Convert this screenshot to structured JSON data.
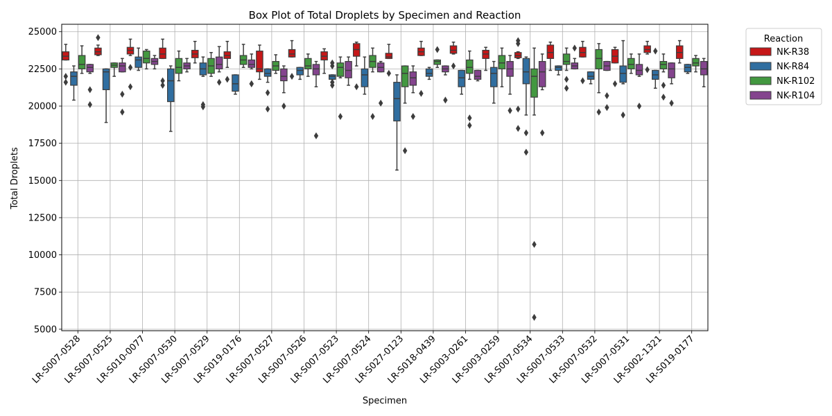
{
  "chart_data": {
    "type": "box",
    "title": "Box Plot of Total Droplets by Specimen and Reaction",
    "xlabel": "Specimen",
    "ylabel": "Total Droplets",
    "ylim": [
      4900,
      25500
    ],
    "yticks": [
      5000,
      7500,
      10000,
      12500,
      15000,
      17500,
      20000,
      22500,
      25000
    ],
    "grid": true,
    "legend": {
      "title": "Reaction",
      "placement": "outside-top-right"
    },
    "categories": [
      "LR-S007-0528",
      "LR-S007-0525",
      "LR-S010-0077",
      "LR-S007-0530",
      "LR-S007-0529",
      "LR-S019-0176",
      "LR-S007-0527",
      "LR-S007-0526",
      "LR-S007-0523",
      "LR-S007-0524",
      "LR-S027-0123",
      "LR-S018-0439",
      "LR-S003-0261",
      "LR-S003-0259",
      "LR-S007-0534",
      "LR-S007-0533",
      "LR-S007-0532",
      "LR-S007-0531",
      "LR-S002-1321",
      "LR-S019-0177"
    ],
    "series": [
      {
        "name": "NK-R38",
        "color": "#e41a1c",
        "boxes": [
          {
            "whislo": 23100,
            "q1": 23100,
            "med": 23350,
            "q3": 23650,
            "whishi": 24150,
            "fliers": [
              22000,
              21600
            ]
          },
          {
            "whislo": 23400,
            "q1": 23450,
            "med": 23650,
            "q3": 23900,
            "whishi": 24100,
            "fliers": [
              24600
            ]
          },
          {
            "whislo": 23400,
            "q1": 23500,
            "med": 23750,
            "q3": 23950,
            "whishi": 24500,
            "fliers": [
              22600,
              21300
            ]
          },
          {
            "whislo": 23200,
            "q1": 23200,
            "med": 23500,
            "q3": 23900,
            "whishi": 24500,
            "fliers": [
              21700,
              21400
            ]
          },
          {
            "whislo": 22900,
            "q1": 23250,
            "med": 23500,
            "q3": 23750,
            "whishi": 24350,
            "fliers": []
          },
          {
            "whislo": 22600,
            "q1": 23200,
            "med": 23400,
            "q3": 23650,
            "whishi": 24350,
            "fliers": [
              21800
            ]
          },
          {
            "whislo": 21800,
            "q1": 22300,
            "med": 22500,
            "q3": 23700,
            "whishi": 24100,
            "fliers": []
          },
          {
            "whislo": 23300,
            "q1": 23300,
            "med": 23500,
            "q3": 23800,
            "whishi": 24400,
            "fliers": [
              22000
            ]
          },
          {
            "whislo": 22200,
            "q1": 23100,
            "med": 23350,
            "q3": 23650,
            "whishi": 23850,
            "fliers": []
          },
          {
            "whislo": 22700,
            "q1": 23350,
            "med": 23800,
            "q3": 24200,
            "whishi": 24300,
            "fliers": [
              21300
            ]
          },
          {
            "whislo": 23200,
            "q1": 23200,
            "med": 23300,
            "q3": 23550,
            "whishi": 24150,
            "fliers": [
              22200
            ]
          },
          {
            "whislo": 23400,
            "q1": 23400,
            "med": 23650,
            "q3": 23900,
            "whishi": 24350,
            "fliers": [
              20850
            ]
          },
          {
            "whislo": 23500,
            "q1": 23550,
            "med": 23750,
            "q3": 24050,
            "whishi": 24300,
            "fliers": [
              22700
            ]
          },
          {
            "whislo": 22400,
            "q1": 23200,
            "med": 23500,
            "q3": 23750,
            "whishi": 23950,
            "fliers": []
          },
          {
            "whislo": 23200,
            "q1": 23250,
            "med": 23400,
            "q3": 23600,
            "whishi": 23650,
            "fliers": [
              24400,
              24200,
              19800,
              18500
            ]
          },
          {
            "whislo": 22400,
            "q1": 23200,
            "med": 23600,
            "q3": 24100,
            "whishi": 24300,
            "fliers": []
          },
          {
            "whislo": 23300,
            "q1": 23300,
            "med": 23600,
            "q3": 23950,
            "whishi": 24350,
            "fliers": [
              21700
            ]
          },
          {
            "whislo": 22900,
            "q1": 22900,
            "med": 23350,
            "q3": 23800,
            "whishi": 23950,
            "fliers": [
              21500
            ]
          },
          {
            "whislo": 23500,
            "q1": 23600,
            "med": 23800,
            "q3": 24050,
            "whishi": 24350,
            "fliers": [
              22450
            ]
          },
          {
            "whislo": 22900,
            "q1": 23200,
            "med": 23600,
            "q3": 24050,
            "whishi": 24400,
            "fliers": []
          }
        ]
      },
      {
        "name": "NK-R84",
        "color": "#377eb8",
        "boxes": [
          {
            "whislo": 20400,
            "q1": 21400,
            "med": 22000,
            "q3": 22300,
            "whishi": 22700,
            "fliers": []
          },
          {
            "whislo": 18900,
            "q1": 21100,
            "med": 22300,
            "q3": 22500,
            "whishi": 22500,
            "fliers": []
          },
          {
            "whislo": 22400,
            "q1": 22600,
            "med": 23100,
            "q3": 23300,
            "whishi": 23900,
            "fliers": []
          },
          {
            "whislo": 18300,
            "q1": 20300,
            "med": 21700,
            "q3": 22500,
            "whishi": 22700,
            "fliers": []
          },
          {
            "whislo": 22000,
            "q1": 22100,
            "med": 22500,
            "q3": 22900,
            "whishi": 23300,
            "fliers": [
              20100,
              19950
            ]
          },
          {
            "whislo": 20800,
            "q1": 21000,
            "med": 21500,
            "q3": 22100,
            "whishi": 22100,
            "fliers": []
          },
          {
            "whislo": 21600,
            "q1": 22000,
            "med": 22200,
            "q3": 22500,
            "whishi": 22500,
            "fliers": [
              20900,
              19800
            ]
          },
          {
            "whislo": 21800,
            "q1": 22100,
            "med": 22400,
            "q3": 22600,
            "whishi": 22600,
            "fliers": []
          },
          {
            "whislo": 21800,
            "q1": 21800,
            "med": 22000,
            "q3": 22100,
            "whishi": 22100,
            "fliers": [
              22700,
              22900,
              21600,
              21400
            ]
          },
          {
            "whislo": 20800,
            "q1": 21300,
            "med": 22100,
            "q3": 22500,
            "whishi": 23300,
            "fliers": []
          },
          {
            "whislo": 15700,
            "q1": 19000,
            "med": 20500,
            "q3": 21600,
            "whishi": 22100,
            "fliers": []
          },
          {
            "whislo": 21800,
            "q1": 22000,
            "med": 22200,
            "q3": 22500,
            "whishi": 22600,
            "fliers": []
          },
          {
            "whislo": 20800,
            "q1": 21300,
            "med": 21900,
            "q3": 22400,
            "whishi": 22400,
            "fliers": []
          },
          {
            "whislo": 20200,
            "q1": 21300,
            "med": 22200,
            "q3": 22600,
            "whishi": 23000,
            "fliers": []
          },
          {
            "whislo": 19400,
            "q1": 21500,
            "med": 22300,
            "q3": 23200,
            "whishi": 23300,
            "fliers": [
              16900,
              18200
            ]
          },
          {
            "whislo": 22100,
            "q1": 22400,
            "med": 22600,
            "q3": 22700,
            "whishi": 22700,
            "fliers": []
          },
          {
            "whislo": 21500,
            "q1": 21800,
            "med": 22000,
            "q3": 22300,
            "whishi": 22300,
            "fliers": []
          },
          {
            "whislo": 21500,
            "q1": 21600,
            "med": 22200,
            "q3": 22700,
            "whishi": 24400,
            "fliers": [
              19400
            ]
          },
          {
            "whislo": 21200,
            "q1": 21800,
            "med": 22100,
            "q3": 22400,
            "whishi": 22400,
            "fliers": [
              23700
            ]
          },
          {
            "whislo": 22200,
            "q1": 22300,
            "med": 22600,
            "q3": 22800,
            "whishi": 22800,
            "fliers": []
          }
        ]
      },
      {
        "name": "NK-R102",
        "color": "#4daf4a",
        "boxes": [
          {
            "whislo": 22200,
            "q1": 22500,
            "med": 22800,
            "q3": 23400,
            "whishi": 24050,
            "fliers": []
          },
          {
            "whislo": 22000,
            "q1": 22600,
            "med": 22750,
            "q3": 22900,
            "whishi": 22900,
            "fliers": []
          },
          {
            "whislo": 22500,
            "q1": 22900,
            "med": 23200,
            "q3": 23700,
            "whishi": 23800,
            "fliers": []
          },
          {
            "whislo": 21700,
            "q1": 22200,
            "med": 22600,
            "q3": 23200,
            "whishi": 23700,
            "fliers": []
          },
          {
            "whislo": 22000,
            "q1": 22200,
            "med": 22700,
            "q3": 23200,
            "whishi": 23600,
            "fliers": []
          },
          {
            "whislo": 22600,
            "q1": 22800,
            "med": 23100,
            "q3": 23400,
            "whishi": 24150,
            "fliers": []
          },
          {
            "whislo": 22200,
            "q1": 22400,
            "med": 22700,
            "q3": 23000,
            "whishi": 23450,
            "fliers": []
          },
          {
            "whislo": 22000,
            "q1": 22500,
            "med": 22700,
            "q3": 23200,
            "whishi": 23500,
            "fliers": []
          },
          {
            "whislo": 21900,
            "q1": 22000,
            "med": 22600,
            "q3": 22900,
            "whishi": 23300,
            "fliers": [
              19300
            ]
          },
          {
            "whislo": 22300,
            "q1": 22600,
            "med": 23000,
            "q3": 23400,
            "whishi": 23900,
            "fliers": [
              19300
            ]
          },
          {
            "whislo": 20200,
            "q1": 21300,
            "med": 22200,
            "q3": 22700,
            "whishi": 22700,
            "fliers": [
              17000
            ]
          },
          {
            "whislo": 22600,
            "q1": 22800,
            "med": 23000,
            "q3": 23100,
            "whishi": 23100,
            "fliers": [
              23800
            ]
          },
          {
            "whislo": 21800,
            "q1": 22200,
            "med": 22600,
            "q3": 23100,
            "whishi": 23700,
            "fliers": [
              19200,
              18700
            ]
          },
          {
            "whislo": 21300,
            "q1": 22500,
            "med": 22900,
            "q3": 23400,
            "whishi": 23900,
            "fliers": []
          },
          {
            "whislo": 19400,
            "q1": 20600,
            "med": 22000,
            "q3": 22500,
            "whishi": 23900,
            "fliers": [
              10700,
              5800
            ]
          },
          {
            "whislo": 22400,
            "q1": 22800,
            "med": 23000,
            "q3": 23500,
            "whishi": 23900,
            "fliers": [
              21800,
              21200
            ]
          },
          {
            "whislo": 20900,
            "q1": 22500,
            "med": 23200,
            "q3": 23800,
            "whishi": 24200,
            "fliers": [
              19600
            ]
          },
          {
            "whislo": 22200,
            "q1": 22500,
            "med": 22800,
            "q3": 23200,
            "whishi": 23500,
            "fliers": []
          },
          {
            "whislo": 22300,
            "q1": 22500,
            "med": 22800,
            "q3": 23000,
            "whishi": 23500,
            "fliers": [
              21400,
              20600
            ]
          },
          {
            "whislo": 22300,
            "q1": 22700,
            "med": 22900,
            "q3": 23200,
            "whishi": 23400,
            "fliers": []
          }
        ]
      },
      {
        "name": "NK-R104",
        "color": "#984ea3",
        "boxes": [
          {
            "whislo": 22200,
            "q1": 22300,
            "med": 22600,
            "q3": 22800,
            "whishi": 22800,
            "fliers": [
              21100,
              20100
            ]
          },
          {
            "whislo": 22300,
            "q1": 22300,
            "med": 22700,
            "q3": 22900,
            "whishi": 23200,
            "fliers": [
              20800,
              19600
            ]
          },
          {
            "whislo": 22500,
            "q1": 22800,
            "med": 23000,
            "q3": 23200,
            "whishi": 23400,
            "fliers": []
          },
          {
            "whislo": 22300,
            "q1": 22500,
            "med": 22700,
            "q3": 22900,
            "whishi": 23200,
            "fliers": []
          },
          {
            "whislo": 22300,
            "q1": 22500,
            "med": 22800,
            "q3": 23300,
            "whishi": 24000,
            "fliers": [
              21600
            ]
          },
          {
            "whislo": 22500,
            "q1": 22600,
            "med": 22800,
            "q3": 23100,
            "whishi": 23500,
            "fliers": [
              21500,
              21500
            ]
          },
          {
            "whislo": 20900,
            "q1": 21700,
            "med": 22000,
            "q3": 22500,
            "whishi": 22700,
            "fliers": [
              20000
            ]
          },
          {
            "whislo": 21300,
            "q1": 22100,
            "med": 22500,
            "q3": 22800,
            "whishi": 23000,
            "fliers": [
              18000
            ]
          },
          {
            "whislo": 21400,
            "q1": 21900,
            "med": 22400,
            "q3": 23000,
            "whishi": 23300,
            "fliers": []
          },
          {
            "whislo": 22300,
            "q1": 22300,
            "med": 22600,
            "q3": 22900,
            "whishi": 23000,
            "fliers": [
              20200
            ]
          },
          {
            "whislo": 20900,
            "q1": 21400,
            "med": 21900,
            "q3": 22300,
            "whishi": 22700,
            "fliers": [
              19300
            ]
          },
          {
            "whislo": 22100,
            "q1": 22300,
            "med": 22500,
            "q3": 22700,
            "whishi": 22700,
            "fliers": [
              20400
            ]
          },
          {
            "whislo": 21700,
            "q1": 21800,
            "med": 22000,
            "q3": 22400,
            "whishi": 22400,
            "fliers": []
          },
          {
            "whislo": 20800,
            "q1": 22000,
            "med": 22500,
            "q3": 23000,
            "whishi": 23400,
            "fliers": [
              19700
            ]
          },
          {
            "whislo": 21100,
            "q1": 21300,
            "med": 22300,
            "q3": 23000,
            "whishi": 23500,
            "fliers": [
              18200
            ]
          },
          {
            "whislo": 22500,
            "q1": 22500,
            "med": 22700,
            "q3": 22900,
            "whishi": 23200,
            "fliers": [
              23900
            ]
          },
          {
            "whislo": 22400,
            "q1": 22400,
            "med": 22700,
            "q3": 23000,
            "whishi": 23000,
            "fliers": [
              20700,
              19900
            ]
          },
          {
            "whislo": 22000,
            "q1": 22100,
            "med": 22400,
            "q3": 22800,
            "whishi": 23500,
            "fliers": [
              20000
            ]
          },
          {
            "whislo": 21500,
            "q1": 21900,
            "med": 22500,
            "q3": 22900,
            "whishi": 22900,
            "fliers": [
              20200
            ]
          },
          {
            "whislo": 21300,
            "q1": 22100,
            "med": 22500,
            "q3": 23000,
            "whishi": 23200,
            "fliers": []
          }
        ]
      }
    ]
  }
}
